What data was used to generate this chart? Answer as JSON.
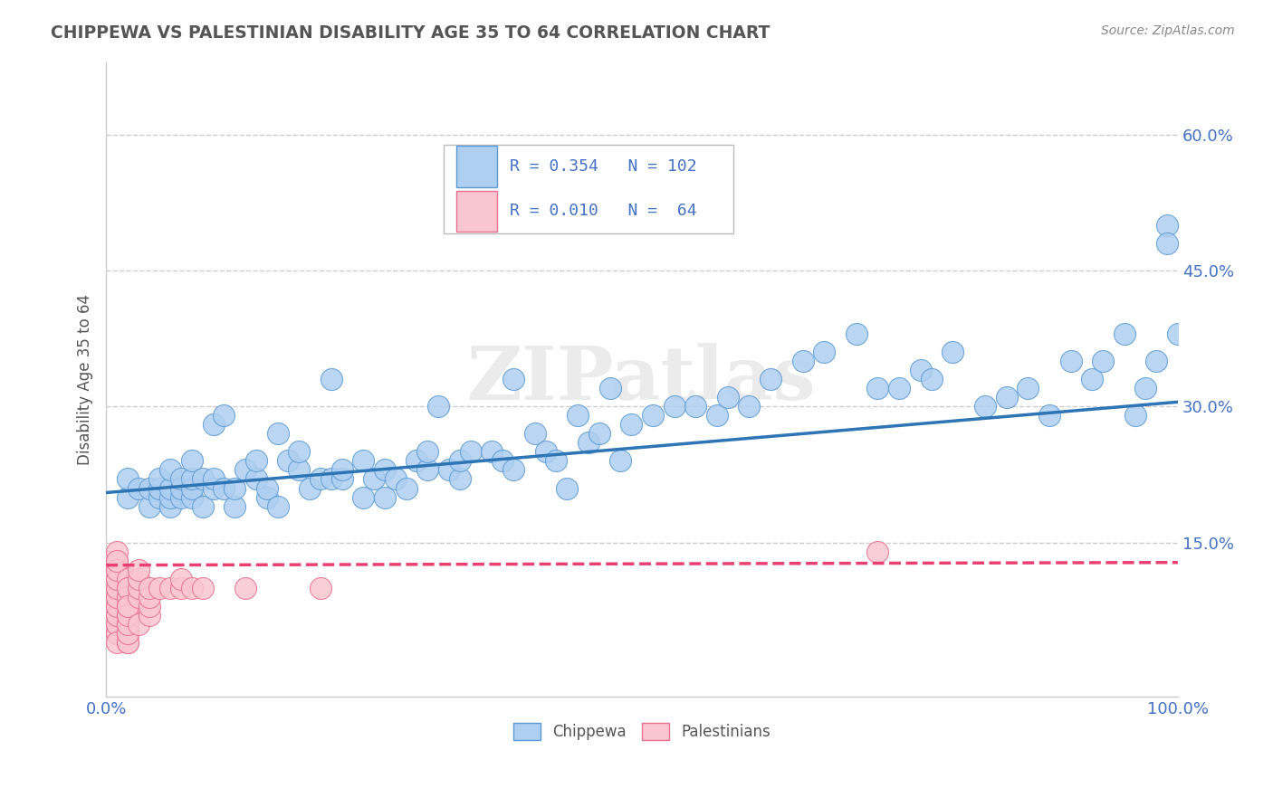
{
  "title": "CHIPPEWA VS PALESTINIAN DISABILITY AGE 35 TO 64 CORRELATION CHART",
  "source": "Source: ZipAtlas.com",
  "ylabel": "Disability Age 35 to 64",
  "xlim": [
    0,
    1.0
  ],
  "ylim": [
    -0.02,
    0.68
  ],
  "xticks": [
    0.0,
    0.2,
    0.4,
    0.6,
    0.8,
    1.0
  ],
  "xtick_labels": [
    "0.0%",
    "",
    "",
    "",
    "",
    "100.0%"
  ],
  "yticks": [
    0.15,
    0.3,
    0.45,
    0.6
  ],
  "ytick_labels": [
    "15.0%",
    "30.0%",
    "45.0%",
    "60.0%"
  ],
  "chippewa_R": 0.354,
  "chippewa_N": 102,
  "palestinian_R": 0.01,
  "palestinian_N": 64,
  "chippewa_color": "#AECFF0",
  "chippewa_edge_color": "#5B9BD5",
  "chippewa_line_color": "#2E75B6",
  "palestinian_color": "#F9C6D0",
  "palestinian_edge_color": "#E87090",
  "palestinian_line_color": "#E84070",
  "background_color": "#FFFFFF",
  "grid_color": "#CCCCCC",
  "watermark": "ZIPatlas",
  "legend_label_chippewa": "Chippewa",
  "legend_label_palestinian": "Palestinians",
  "chippewa_line_x0": 0.0,
  "chippewa_line_x1": 1.0,
  "chippewa_line_y0": 0.205,
  "chippewa_line_y1": 0.305,
  "palestinian_line_x0": 0.0,
  "palestinian_line_x1": 1.0,
  "palestinian_line_y0": 0.125,
  "palestinian_line_y1": 0.128,
  "chippewa_x": [
    0.02,
    0.02,
    0.03,
    0.04,
    0.04,
    0.05,
    0.05,
    0.05,
    0.06,
    0.06,
    0.06,
    0.06,
    0.07,
    0.07,
    0.07,
    0.08,
    0.08,
    0.08,
    0.08,
    0.09,
    0.09,
    0.1,
    0.1,
    0.1,
    0.11,
    0.11,
    0.12,
    0.12,
    0.13,
    0.14,
    0.14,
    0.15,
    0.15,
    0.16,
    0.16,
    0.17,
    0.18,
    0.18,
    0.19,
    0.2,
    0.21,
    0.21,
    0.22,
    0.22,
    0.24,
    0.24,
    0.25,
    0.26,
    0.26,
    0.27,
    0.28,
    0.29,
    0.3,
    0.3,
    0.31,
    0.32,
    0.33,
    0.33,
    0.34,
    0.36,
    0.37,
    0.38,
    0.38,
    0.4,
    0.41,
    0.42,
    0.43,
    0.44,
    0.45,
    0.46,
    0.47,
    0.48,
    0.49,
    0.51,
    0.53,
    0.55,
    0.57,
    0.58,
    0.6,
    0.62,
    0.65,
    0.67,
    0.7,
    0.72,
    0.74,
    0.76,
    0.77,
    0.79,
    0.82,
    0.84,
    0.86,
    0.88,
    0.9,
    0.92,
    0.93,
    0.95,
    0.96,
    0.97,
    0.98,
    0.99,
    0.99,
    1.0
  ],
  "chippewa_y": [
    0.2,
    0.22,
    0.21,
    0.19,
    0.21,
    0.2,
    0.21,
    0.22,
    0.19,
    0.2,
    0.21,
    0.23,
    0.2,
    0.21,
    0.22,
    0.2,
    0.21,
    0.22,
    0.24,
    0.19,
    0.22,
    0.21,
    0.22,
    0.28,
    0.21,
    0.29,
    0.19,
    0.21,
    0.23,
    0.22,
    0.24,
    0.2,
    0.21,
    0.19,
    0.27,
    0.24,
    0.23,
    0.25,
    0.21,
    0.22,
    0.22,
    0.33,
    0.22,
    0.23,
    0.2,
    0.24,
    0.22,
    0.2,
    0.23,
    0.22,
    0.21,
    0.24,
    0.23,
    0.25,
    0.3,
    0.23,
    0.22,
    0.24,
    0.25,
    0.25,
    0.24,
    0.23,
    0.33,
    0.27,
    0.25,
    0.24,
    0.21,
    0.29,
    0.26,
    0.27,
    0.32,
    0.24,
    0.28,
    0.29,
    0.3,
    0.3,
    0.29,
    0.31,
    0.3,
    0.33,
    0.35,
    0.36,
    0.38,
    0.32,
    0.32,
    0.34,
    0.33,
    0.36,
    0.3,
    0.31,
    0.32,
    0.29,
    0.35,
    0.33,
    0.35,
    0.38,
    0.29,
    0.32,
    0.35,
    0.5,
    0.48,
    0.38
  ],
  "palestinian_x": [
    0.0,
    0.0,
    0.0,
    0.0,
    0.0,
    0.0,
    0.0,
    0.01,
    0.01,
    0.01,
    0.01,
    0.01,
    0.01,
    0.01,
    0.01,
    0.01,
    0.01,
    0.01,
    0.01,
    0.01,
    0.01,
    0.01,
    0.01,
    0.01,
    0.01,
    0.01,
    0.01,
    0.02,
    0.02,
    0.02,
    0.02,
    0.02,
    0.02,
    0.02,
    0.02,
    0.02,
    0.02,
    0.02,
    0.02,
    0.02,
    0.02,
    0.02,
    0.02,
    0.02,
    0.02,
    0.02,
    0.03,
    0.03,
    0.03,
    0.03,
    0.03,
    0.04,
    0.04,
    0.04,
    0.04,
    0.05,
    0.06,
    0.07,
    0.07,
    0.08,
    0.09,
    0.13,
    0.2,
    0.72
  ],
  "palestinian_y": [
    0.07,
    0.08,
    0.09,
    0.1,
    0.11,
    0.12,
    0.13,
    0.05,
    0.06,
    0.07,
    0.08,
    0.09,
    0.1,
    0.11,
    0.12,
    0.13,
    0.14,
    0.05,
    0.06,
    0.07,
    0.08,
    0.09,
    0.1,
    0.11,
    0.12,
    0.13,
    0.04,
    0.05,
    0.06,
    0.07,
    0.08,
    0.09,
    0.1,
    0.11,
    0.04,
    0.05,
    0.06,
    0.07,
    0.08,
    0.09,
    0.1,
    0.04,
    0.05,
    0.06,
    0.07,
    0.08,
    0.09,
    0.1,
    0.11,
    0.12,
    0.06,
    0.07,
    0.08,
    0.09,
    0.1,
    0.1,
    0.1,
    0.1,
    0.11,
    0.1,
    0.1,
    0.1,
    0.1,
    0.14
  ]
}
